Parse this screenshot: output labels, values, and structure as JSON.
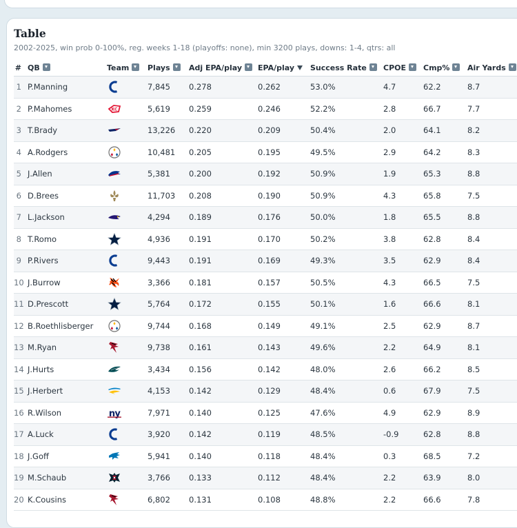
{
  "title": "Table",
  "subtitle": "2002-2025, win prob 0-100%, reg. weeks 1-18 (playoffs: none), min 3200 plays, downs: 1-4, qtrs: all",
  "columns": {
    "rank": "#",
    "qb": "QB",
    "team": "Team",
    "plays": "Plays",
    "adj_epa": "Adj EPA/play",
    "epa": "EPA/play",
    "success": "Success Rate",
    "cpoe": "CPOE",
    "cmp": "Cmp%",
    "air": "Air Yards"
  },
  "rows": [
    {
      "rank": "1",
      "qb": "P.Manning",
      "team_icon": "colts-logo",
      "plays": "7,845",
      "adj_epa": "0.278",
      "epa": "0.262",
      "success": "53.0%",
      "cpoe": "4.7",
      "cmp": "62.2",
      "air": "8.7"
    },
    {
      "rank": "2",
      "qb": "P.Mahomes",
      "team_icon": "chiefs-logo",
      "plays": "5,619",
      "adj_epa": "0.259",
      "epa": "0.246",
      "success": "52.2%",
      "cpoe": "2.8",
      "cmp": "66.7",
      "air": "7.7"
    },
    {
      "rank": "3",
      "qb": "T.Brady",
      "team_icon": "patriots-logo",
      "plays": "13,226",
      "adj_epa": "0.220",
      "epa": "0.209",
      "success": "50.4%",
      "cpoe": "2.0",
      "cmp": "64.1",
      "air": "8.2"
    },
    {
      "rank": "4",
      "qb": "A.Rodgers",
      "team_icon": "steelers-logo",
      "plays": "10,481",
      "adj_epa": "0.205",
      "epa": "0.195",
      "success": "49.5%",
      "cpoe": "2.9",
      "cmp": "64.2",
      "air": "8.3"
    },
    {
      "rank": "5",
      "qb": "J.Allen",
      "team_icon": "bills-logo",
      "plays": "5,381",
      "adj_epa": "0.200",
      "epa": "0.192",
      "success": "50.9%",
      "cpoe": "1.9",
      "cmp": "65.3",
      "air": "8.8"
    },
    {
      "rank": "6",
      "qb": "D.Brees",
      "team_icon": "saints-logo",
      "plays": "11,703",
      "adj_epa": "0.208",
      "epa": "0.190",
      "success": "50.9%",
      "cpoe": "4.3",
      "cmp": "65.8",
      "air": "7.5"
    },
    {
      "rank": "7",
      "qb": "L.Jackson",
      "team_icon": "ravens-logo",
      "plays": "4,294",
      "adj_epa": "0.189",
      "epa": "0.176",
      "success": "50.0%",
      "cpoe": "1.8",
      "cmp": "65.5",
      "air": "8.8"
    },
    {
      "rank": "8",
      "qb": "T.Romo",
      "team_icon": "cowboys-logo",
      "plays": "4,936",
      "adj_epa": "0.191",
      "epa": "0.170",
      "success": "50.2%",
      "cpoe": "3.8",
      "cmp": "62.8",
      "air": "8.4"
    },
    {
      "rank": "9",
      "qb": "P.Rivers",
      "team_icon": "colts-logo",
      "plays": "9,443",
      "adj_epa": "0.191",
      "epa": "0.169",
      "success": "49.3%",
      "cpoe": "3.5",
      "cmp": "62.9",
      "air": "8.4"
    },
    {
      "rank": "10",
      "qb": "J.Burrow",
      "team_icon": "bengals-logo",
      "plays": "3,366",
      "adj_epa": "0.181",
      "epa": "0.157",
      "success": "50.5%",
      "cpoe": "4.3",
      "cmp": "66.5",
      "air": "7.5"
    },
    {
      "rank": "11",
      "qb": "D.Prescott",
      "team_icon": "cowboys-logo",
      "plays": "5,764",
      "adj_epa": "0.172",
      "epa": "0.155",
      "success": "50.1%",
      "cpoe": "1.6",
      "cmp": "66.6",
      "air": "8.1"
    },
    {
      "rank": "12",
      "qb": "B.Roethlisberger",
      "team_icon": "steelers-logo",
      "plays": "9,744",
      "adj_epa": "0.168",
      "epa": "0.149",
      "success": "49.1%",
      "cpoe": "2.5",
      "cmp": "62.9",
      "air": "8.7"
    },
    {
      "rank": "13",
      "qb": "M.Ryan",
      "team_icon": "falcons-logo",
      "plays": "9,738",
      "adj_epa": "0.161",
      "epa": "0.143",
      "success": "49.6%",
      "cpoe": "2.2",
      "cmp": "64.9",
      "air": "8.1"
    },
    {
      "rank": "14",
      "qb": "J.Hurts",
      "team_icon": "eagles-logo",
      "plays": "3,434",
      "adj_epa": "0.156",
      "epa": "0.142",
      "success": "48.0%",
      "cpoe": "2.6",
      "cmp": "66.2",
      "air": "8.5"
    },
    {
      "rank": "15",
      "qb": "J.Herbert",
      "team_icon": "chargers-logo",
      "plays": "4,153",
      "adj_epa": "0.142",
      "epa": "0.129",
      "success": "48.4%",
      "cpoe": "0.6",
      "cmp": "67.9",
      "air": "7.5"
    },
    {
      "rank": "16",
      "qb": "R.Wilson",
      "team_icon": "giants-logo",
      "plays": "7,971",
      "adj_epa": "0.140",
      "epa": "0.125",
      "success": "47.6%",
      "cpoe": "4.9",
      "cmp": "62.9",
      "air": "8.9"
    },
    {
      "rank": "17",
      "qb": "A.Luck",
      "team_icon": "colts-logo",
      "plays": "3,920",
      "adj_epa": "0.142",
      "epa": "0.119",
      "success": "48.5%",
      "cpoe": "-0.9",
      "cmp": "62.8",
      "air": "8.8"
    },
    {
      "rank": "18",
      "qb": "J.Goff",
      "team_icon": "lions-logo",
      "plays": "5,941",
      "adj_epa": "0.140",
      "epa": "0.118",
      "success": "48.4%",
      "cpoe": "0.3",
      "cmp": "68.5",
      "air": "7.2"
    },
    {
      "rank": "19",
      "qb": "M.Schaub",
      "team_icon": "texans-logo",
      "plays": "3,766",
      "adj_epa": "0.133",
      "epa": "0.112",
      "success": "48.4%",
      "cpoe": "2.2",
      "cmp": "63.9",
      "air": "8.0"
    },
    {
      "rank": "20",
      "qb": "K.Cousins",
      "team_icon": "falcons-logo",
      "plays": "6,802",
      "adj_epa": "0.131",
      "epa": "0.108",
      "success": "48.8%",
      "cpoe": "2.2",
      "cmp": "66.6",
      "air": "7.8"
    }
  ],
  "colors": {
    "colts": "#0b3d91",
    "chiefs": "#e31837",
    "patriots": "#0b2265",
    "steelers": "#ffb612",
    "bills": "#00338d",
    "saints": "#9f8958",
    "ravens": "#241773",
    "cowboys": "#041e42",
    "bengals": "#fb4f14",
    "falcons": "#a71930",
    "eagles": "#004c54",
    "chargers": "#0080c6",
    "giants": "#0b2265",
    "lions": "#0076b6",
    "texans": "#03202f"
  }
}
